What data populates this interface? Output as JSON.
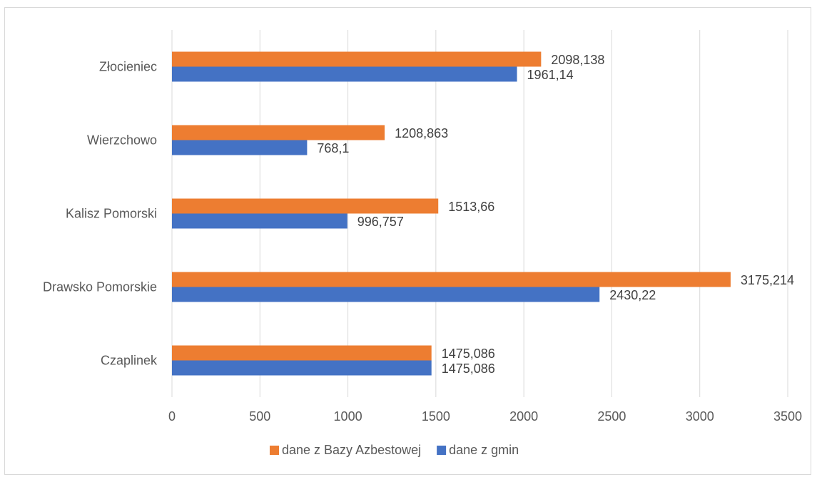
{
  "chart_data": {
    "type": "bar",
    "orientation": "horizontal",
    "title": "",
    "xlabel": "",
    "ylabel": "",
    "categories": [
      "Złocieniec",
      "Wierzchowo",
      "Kalisz Pomorski",
      "Drawsko Pomorskie",
      "Czaplinek"
    ],
    "series": [
      {
        "name": "dane z Bazy Azbestowej",
        "color": "#ED7D31",
        "values": [
          2098.138,
          1208.863,
          1513.66,
          3175.214,
          1475.086
        ],
        "labels": [
          "2098,138",
          "1208,863",
          "1513,66",
          "3175,214",
          "1475,086"
        ]
      },
      {
        "name": "dane z gmin",
        "color": "#4472C4",
        "values": [
          1961.14,
          768.1,
          996.757,
          2430.22,
          1475.086
        ],
        "labels": [
          "1961,14",
          "768,1",
          "996,757",
          "2430,22",
          "1475,086"
        ]
      }
    ],
    "xlim": [
      0,
      3500
    ],
    "xticks": [
      "0",
      "500",
      "1000",
      "1500",
      "2000",
      "2500",
      "3000",
      "3500"
    ],
    "grid": true,
    "legend_position": "bottom"
  }
}
